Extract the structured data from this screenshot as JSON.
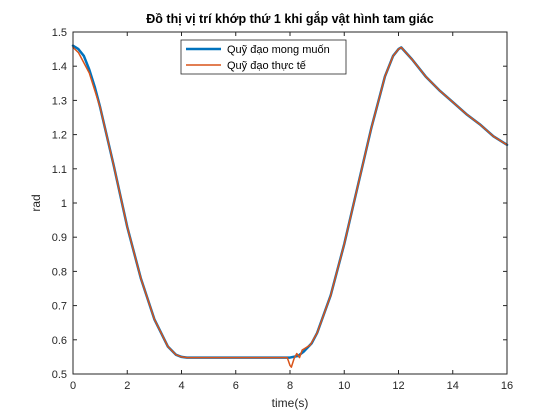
{
  "chart_data": {
    "type": "line",
    "title": "Đồ thị vị trí khớp thứ 1 khi gắp vật hình tam giác",
    "xlabel": "time(s)",
    "ylabel": "rad",
    "xlim": [
      0,
      16
    ],
    "ylim": [
      0.5,
      1.5
    ],
    "xticks": [
      0,
      2,
      4,
      6,
      8,
      10,
      12,
      14,
      16
    ],
    "xtick_labels": [
      "0",
      "2",
      "4",
      "6",
      "8",
      "10",
      "12",
      "14",
      "16"
    ],
    "yticks": [
      0.5,
      0.6,
      0.7,
      0.8,
      0.9,
      1.0,
      1.1,
      1.2,
      1.3,
      1.4,
      1.5
    ],
    "ytick_labels": [
      "0.5",
      "0.6",
      "0.7",
      "0.8",
      "0.9",
      "1",
      "1.1",
      "1.2",
      "1.3",
      "1.4",
      "1.5"
    ],
    "grid": false,
    "legend_position": "top-center",
    "series": [
      {
        "name": "Quỹ đạo mong muốn",
        "color": "#0072BD",
        "x": [
          0,
          0.2,
          0.4,
          0.6,
          0.8,
          1.0,
          1.5,
          2.0,
          2.5,
          3.0,
          3.5,
          3.8,
          4.0,
          4.2,
          5.0,
          6.0,
          7.0,
          8.0,
          8.3,
          8.5,
          8.8,
          9.0,
          9.5,
          10.0,
          10.5,
          11.0,
          11.5,
          11.8,
          12.0,
          12.1,
          12.5,
          13.0,
          13.5,
          14.0,
          14.5,
          15.0,
          15.5,
          16.0
        ],
        "y": [
          1.46,
          1.45,
          1.43,
          1.39,
          1.34,
          1.28,
          1.11,
          0.93,
          0.78,
          0.66,
          0.58,
          0.556,
          0.55,
          0.548,
          0.548,
          0.548,
          0.548,
          0.548,
          0.553,
          0.565,
          0.59,
          0.62,
          0.73,
          0.88,
          1.05,
          1.22,
          1.37,
          1.43,
          1.45,
          1.455,
          1.42,
          1.37,
          1.33,
          1.295,
          1.26,
          1.23,
          1.195,
          1.17
        ]
      },
      {
        "name": "Quỹ đạo thực tế",
        "color": "#D95319",
        "x": [
          0,
          0.2,
          0.4,
          0.6,
          0.8,
          1.0,
          1.5,
          2.0,
          2.5,
          3.0,
          3.5,
          3.8,
          4.0,
          4.2,
          5.0,
          6.0,
          7.0,
          7.9,
          8.0,
          8.05,
          8.15,
          8.25,
          8.35,
          8.45,
          8.55,
          8.65,
          8.75,
          9.0,
          9.5,
          10.0,
          10.5,
          11.0,
          11.5,
          11.8,
          12.0,
          12.1,
          12.5,
          13.0,
          13.5,
          14.0,
          14.5,
          15.0,
          15.5,
          16.0
        ],
        "y": [
          1.455,
          1.44,
          1.41,
          1.38,
          1.33,
          1.28,
          1.11,
          0.93,
          0.78,
          0.66,
          0.58,
          0.556,
          0.55,
          0.548,
          0.548,
          0.548,
          0.548,
          0.548,
          0.525,
          0.52,
          0.545,
          0.56,
          0.548,
          0.57,
          0.575,
          0.58,
          0.585,
          0.62,
          0.73,
          0.88,
          1.05,
          1.22,
          1.37,
          1.43,
          1.45,
          1.455,
          1.42,
          1.37,
          1.33,
          1.295,
          1.26,
          1.23,
          1.195,
          1.17
        ]
      }
    ]
  }
}
